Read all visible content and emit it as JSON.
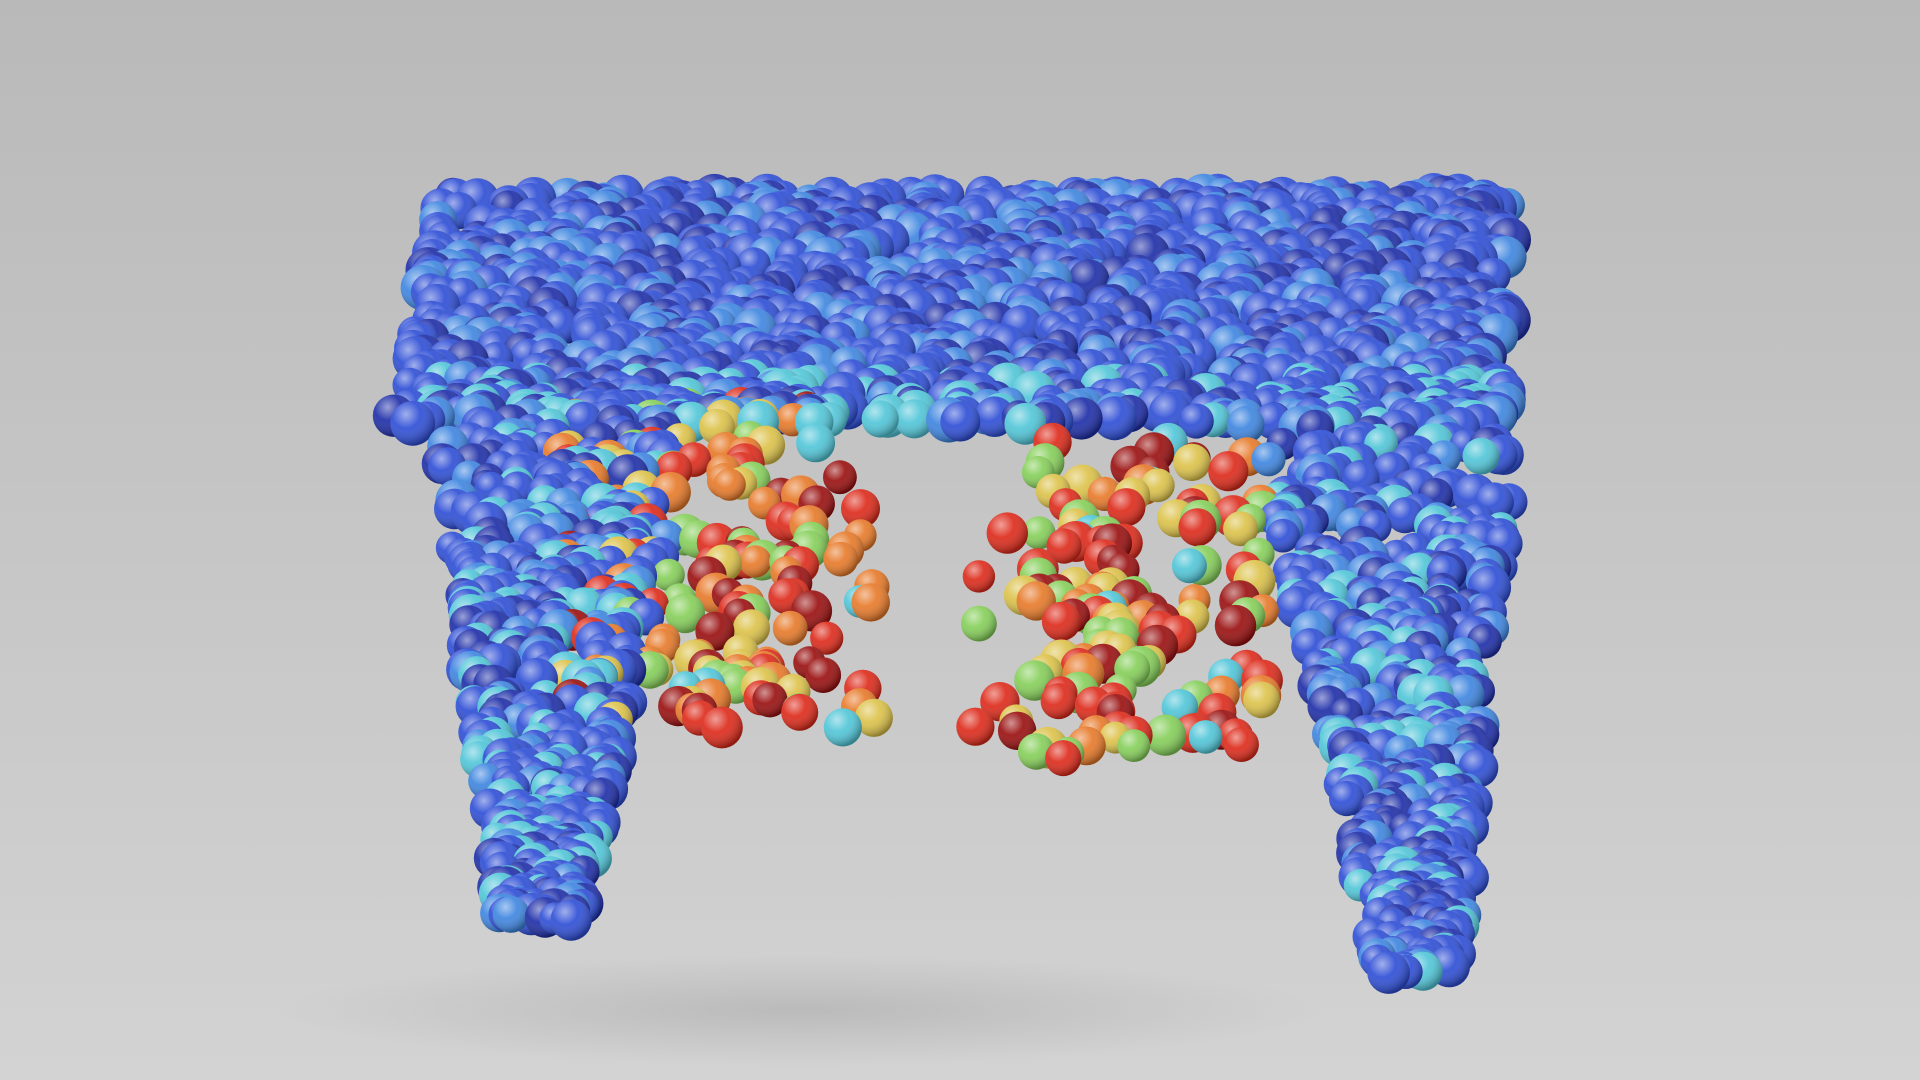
{
  "scene": {
    "subject": "particle-table",
    "background_top": "#b9b9b9",
    "background_bottom": "#d3d3d3",
    "shadow_color": "#a8a8a8",
    "palette": {
      "deep_blue": "#1f2fa8",
      "blue": "#2f4fd6",
      "light_blue": "#3f86e0",
      "cyan": "#52c6d8",
      "green": "#86cf5a",
      "yellow": "#dcc24a",
      "orange": "#e77a2a",
      "red": "#dd2b1b",
      "dark_red": "#9a1010"
    }
  }
}
